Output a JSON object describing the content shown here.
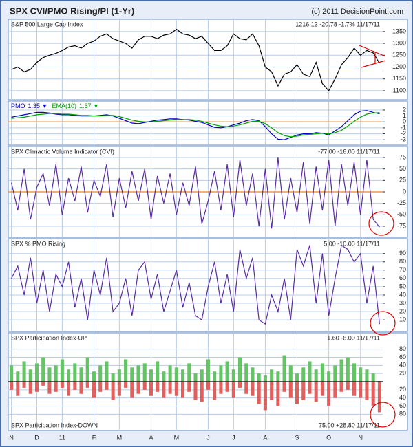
{
  "header": {
    "title": "SPX CVI/PMO Rising/PI (1-Yr)",
    "copyright": "(c) 2011 DecisionPoint.com"
  },
  "chart_data": [
    {
      "type": "line",
      "title": "S&P 500 Large Cap Index",
      "subtitle": "1216.13  -20.78  -1.7%  11/17/11",
      "ylim": [
        1062,
        1402
      ],
      "yticks": [
        1100,
        1150,
        1200,
        1250,
        1300,
        1350
      ],
      "grid": true,
      "series": [
        {
          "name": "S&P 500 Large Cap Index",
          "color": "#000000",
          "values": [
            1190,
            1200,
            1180,
            1190,
            1220,
            1240,
            1250,
            1258,
            1270,
            1285,
            1290,
            1280,
            1300,
            1310,
            1330,
            1340,
            1320,
            1310,
            1300,
            1280,
            1315,
            1330,
            1330,
            1320,
            1335,
            1340,
            1360,
            1340,
            1335,
            1320,
            1330,
            1300,
            1270,
            1270,
            1290,
            1340,
            1320,
            1315,
            1340,
            1290,
            1200,
            1180,
            1120,
            1170,
            1180,
            1210,
            1170,
            1160,
            1220,
            1130,
            1100,
            1150,
            1210,
            1240,
            1280,
            1250,
            1270,
            1260,
            1216.13
          ]
        }
      ]
    },
    {
      "type": "line",
      "zero_line": true,
      "ylim": [
        -3.9,
        3.5
      ],
      "yticks": [
        2,
        1,
        0,
        -1,
        -2,
        -3
      ],
      "grid": true,
      "series": [
        {
          "name": "PMO",
          "annotation": "1.35 ▼",
          "color": "#0000cc",
          "values": [
            0.8,
            1.0,
            1.2,
            1.4,
            1.6,
            1.6,
            1.5,
            1.3,
            1.2,
            1.2,
            1.1,
            1.0,
            1.0,
            1.0,
            1.1,
            1.2,
            1.0,
            0.6,
            0.2,
            -0.2,
            -0.3,
            -0.1,
            0.1,
            0.3,
            0.4,
            0.5,
            0.5,
            0.4,
            0.3,
            0.1,
            -0.1,
            -0.5,
            -0.9,
            -1.0,
            -0.8,
            -0.5,
            -0.2,
            0.2,
            0.4,
            0.2,
            -0.8,
            -2.0,
            -2.9,
            -3.0,
            -2.6,
            -2.2,
            -2.0,
            -2.0,
            -1.8,
            -1.9,
            -2.2,
            -1.5,
            -0.8,
            0.2,
            1.2,
            1.8,
            1.9,
            1.6,
            1.35
          ]
        },
        {
          "name": "EMA(10)",
          "annotation": "1.57 ▼",
          "color": "#00a000",
          "values": [
            0.6,
            0.7,
            0.8,
            1.0,
            1.2,
            1.3,
            1.4,
            1.4,
            1.3,
            1.3,
            1.2,
            1.1,
            1.1,
            1.0,
            1.0,
            1.1,
            1.1,
            0.9,
            0.6,
            0.3,
            0.1,
            0.0,
            0.0,
            0.1,
            0.2,
            0.3,
            0.4,
            0.4,
            0.4,
            0.3,
            0.1,
            -0.2,
            -0.5,
            -0.7,
            -0.8,
            -0.7,
            -0.5,
            -0.2,
            0.1,
            0.1,
            -0.3,
            -1.0,
            -1.8,
            -2.3,
            -2.5,
            -2.4,
            -2.2,
            -2.1,
            -2.0,
            -1.9,
            -2.0,
            -1.8,
            -1.4,
            -0.7,
            0.1,
            0.8,
            1.3,
            1.5,
            1.57
          ]
        }
      ]
    },
    {
      "type": "line",
      "title": "SPX Climactic Volume Indicator (CVI)",
      "subtitle": "-77.00  -16.00  11/17/11",
      "zero_line": true,
      "ylim": [
        -99,
        99
      ],
      "yticks": [
        75,
        50,
        25,
        0,
        -25,
        -50,
        -75
      ],
      "grid": true,
      "series": [
        {
          "name": "SPX Climactic Volume Indicator (CVI)",
          "color": "#5a2ca0",
          "values": [
            20,
            -40,
            50,
            -60,
            10,
            40,
            -30,
            60,
            -50,
            30,
            -20,
            55,
            -45,
            25,
            -10,
            60,
            -55,
            30,
            -35,
            45,
            -20,
            50,
            -60,
            35,
            -25,
            40,
            -50,
            20,
            -30,
            55,
            -70,
            -20,
            45,
            -40,
            60,
            -55,
            70,
            -30,
            40,
            -75,
            50,
            -80,
            75,
            -60,
            30,
            -45,
            65,
            -70,
            55,
            -40,
            70,
            -75,
            60,
            -30,
            65,
            -50,
            70,
            -60,
            -77
          ]
        }
      ]
    },
    {
      "type": "line",
      "title": "SPX % PMO Rising",
      "subtitle": "5.00  -10.00  11/17/11",
      "ylim": [
        -4,
        108
      ],
      "yticks": [
        90,
        80,
        70,
        60,
        50,
        40,
        30,
        20,
        10
      ],
      "grid": true,
      "series": [
        {
          "name": "SPX % PMO Rising",
          "color": "#5a2ca0",
          "values": [
            60,
            75,
            40,
            85,
            30,
            70,
            20,
            65,
            50,
            80,
            25,
            60,
            10,
            70,
            40,
            85,
            20,
            30,
            60,
            15,
            70,
            80,
            35,
            65,
            20,
            45,
            70,
            25,
            55,
            15,
            10,
            50,
            80,
            30,
            65,
            20,
            95,
            60,
            85,
            10,
            5,
            40,
            20,
            60,
            10,
            95,
            75,
            100,
            30,
            90,
            15,
            60,
            100,
            95,
            80,
            90,
            30,
            75,
            5
          ]
        }
      ]
    },
    {
      "type": "mirror-bar",
      "categories": [
        "N",
        null,
        null,
        null,
        "D",
        null,
        null,
        null,
        "11",
        null,
        null,
        null,
        null,
        "F",
        null,
        null,
        null,
        "M",
        null,
        null,
        null,
        null,
        "A",
        null,
        null,
        null,
        "M",
        null,
        null,
        null,
        null,
        "J",
        null,
        null,
        null,
        "J",
        null,
        null,
        null,
        null,
        "A",
        null,
        null,
        null,
        null,
        "S",
        null,
        null,
        null,
        null,
        "O",
        null,
        null,
        null,
        null,
        "N",
        null,
        null,
        null
      ],
      "ylim": [
        0,
        120
      ],
      "yticks": [
        20,
        40,
        60,
        80
      ],
      "y2lim": [
        0,
        120
      ],
      "y2ticks": [
        20,
        40,
        60,
        80
      ],
      "grid": true,
      "series": [
        {
          "name": "SPX Participation Index-UP",
          "annotation": "1.60  -6.00  11/17/11",
          "color": "#66c266",
          "values": [
            40,
            25,
            50,
            30,
            45,
            60,
            35,
            40,
            55,
            30,
            45,
            35,
            60,
            25,
            40,
            50,
            20,
            30,
            55,
            35,
            40,
            45,
            30,
            50,
            25,
            40,
            35,
            30,
            45,
            20,
            30,
            55,
            25,
            40,
            50,
            30,
            60,
            45,
            35,
            20,
            15,
            30,
            25,
            65,
            40,
            20,
            35,
            50,
            30,
            45,
            25,
            40,
            55,
            60,
            45,
            35,
            30,
            20,
            1.6
          ]
        },
        {
          "name": "SPX Participation Index-DOWN",
          "annotation": "75.00  +28.80  11/17/11",
          "color": "#e06060",
          "axis": "y2",
          "values": [
            20,
            35,
            15,
            30,
            25,
            10,
            30,
            25,
            15,
            35,
            20,
            30,
            15,
            40,
            25,
            20,
            45,
            35,
            15,
            40,
            30,
            20,
            35,
            25,
            40,
            30,
            35,
            40,
            25,
            45,
            50,
            20,
            45,
            30,
            25,
            40,
            15,
            30,
            35,
            55,
            70,
            45,
            60,
            25,
            40,
            55,
            45,
            30,
            50,
            35,
            60,
            40,
            25,
            20,
            35,
            40,
            45,
            60,
            75
          ]
        }
      ]
    }
  ]
}
